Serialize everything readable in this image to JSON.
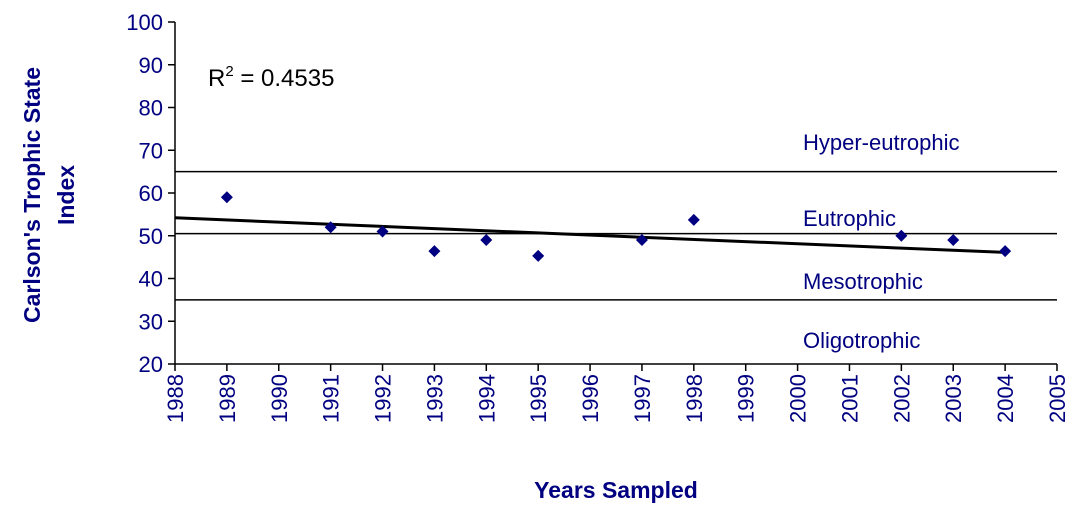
{
  "chart_data": {
    "type": "scatter",
    "xlabel": "Years Sampled",
    "ylabel": [
      "Carlson's Trophic State",
      "Index"
    ],
    "x": [
      1989,
      1991,
      1992,
      1993,
      1994,
      1995,
      1997,
      1998,
      2002,
      2003,
      2004
    ],
    "values": [
      59,
      52,
      51,
      46.4,
      49,
      45.3,
      49,
      53.7,
      50,
      49,
      46.4
    ],
    "color": "#000080",
    "trendline": {
      "x": [
        1988,
        2004
      ],
      "values": [
        54.2,
        46.1
      ]
    },
    "r2_label": {
      "base": "R",
      "sup": "2",
      "rest": " = 0.4535"
    },
    "thresholds": [
      65,
      50.5,
      35
    ],
    "zones": [
      "Hyper-eutrophic",
      "Eutrophic",
      "Mesotrophic",
      "Oligotrophic"
    ],
    "xlim": [
      1988,
      2005
    ],
    "xticks": [
      1988,
      1989,
      1990,
      1991,
      1992,
      1993,
      1994,
      1995,
      1996,
      1997,
      1998,
      1999,
      2000,
      2001,
      2002,
      2003,
      2004,
      2005
    ],
    "ylim": [
      20,
      100
    ],
    "yticks": [
      20,
      30,
      40,
      50,
      60,
      70,
      80,
      90,
      100
    ]
  }
}
